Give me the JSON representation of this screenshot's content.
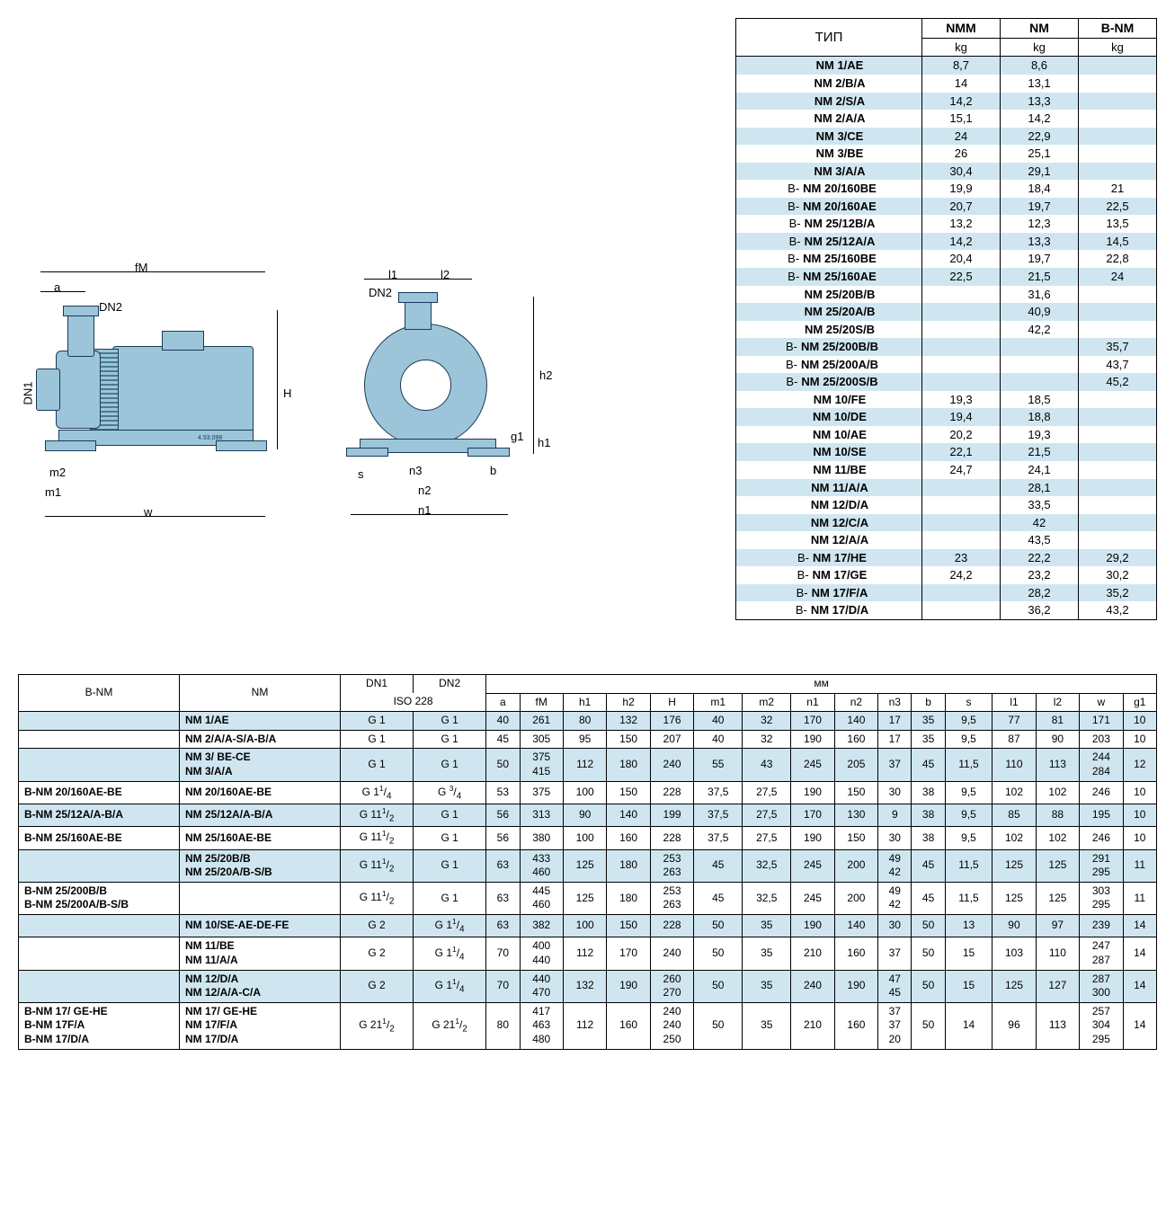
{
  "colors": {
    "stripe": "#cfe6f0",
    "pump_fill": "#9cc5d9",
    "pump_stroke": "#1a3a5a",
    "border": "#000000",
    "background": "#ffffff"
  },
  "diagram_labels": {
    "side": [
      "fM",
      "a",
      "DN2",
      "DN1",
      "H",
      "m2",
      "m1",
      "w"
    ],
    "front": [
      "l1",
      "l2",
      "DN2",
      "h2",
      "g1",
      "h1",
      "s",
      "n3",
      "b",
      "n2",
      "n1"
    ],
    "drawing_ref": "4.93.098"
  },
  "weight_table": {
    "header": {
      "type": "ТИП",
      "col1": "NMM",
      "col2": "NM",
      "col3": "B-NM",
      "unit": "kg"
    },
    "rows": [
      {
        "prefix": "",
        "model": "NM 1/AE",
        "nmm": "8,7",
        "nm": "8,6",
        "bnm": "",
        "stripe": true
      },
      {
        "prefix": "",
        "model": "NM 2/B/A",
        "nmm": "14",
        "nm": "13,1",
        "bnm": "",
        "stripe": false
      },
      {
        "prefix": "",
        "model": "NM 2/S/A",
        "nmm": "14,2",
        "nm": "13,3",
        "bnm": "",
        "stripe": true
      },
      {
        "prefix": "",
        "model": "NM 2/A/A",
        "nmm": "15,1",
        "nm": "14,2",
        "bnm": "",
        "stripe": false
      },
      {
        "prefix": "",
        "model": "NM 3/CE",
        "nmm": "24",
        "nm": "22,9",
        "bnm": "",
        "stripe": true
      },
      {
        "prefix": "",
        "model": "NM 3/BE",
        "nmm": "26",
        "nm": "25,1",
        "bnm": "",
        "stripe": false
      },
      {
        "prefix": "",
        "model": "NM 3/A/A",
        "nmm": "30,4",
        "nm": "29,1",
        "bnm": "",
        "stripe": true
      },
      {
        "prefix": "B-",
        "model": "NM 20/160BE",
        "nmm": "19,9",
        "nm": "18,4",
        "bnm": "21",
        "stripe": false
      },
      {
        "prefix": "B-",
        "model": "NM 20/160AE",
        "nmm": "20,7",
        "nm": "19,7",
        "bnm": "22,5",
        "stripe": true
      },
      {
        "prefix": "B-",
        "model": "NM 25/12B/A",
        "nmm": "13,2",
        "nm": "12,3",
        "bnm": "13,5",
        "stripe": false
      },
      {
        "prefix": "B-",
        "model": "NM 25/12A/A",
        "nmm": "14,2",
        "nm": "13,3",
        "bnm": "14,5",
        "stripe": true
      },
      {
        "prefix": "B-",
        "model": "NM 25/160BE",
        "nmm": "20,4",
        "nm": "19,7",
        "bnm": "22,8",
        "stripe": false
      },
      {
        "prefix": "B-",
        "model": "NM 25/160AE",
        "nmm": "22,5",
        "nm": "21,5",
        "bnm": "24",
        "stripe": true
      },
      {
        "prefix": "",
        "model": "NM 25/20B/B",
        "nmm": "",
        "nm": "31,6",
        "bnm": "",
        "stripe": false
      },
      {
        "prefix": "",
        "model": "NM 25/20A/B",
        "nmm": "",
        "nm": "40,9",
        "bnm": "",
        "stripe": true
      },
      {
        "prefix": "",
        "model": "NM 25/20S/B",
        "nmm": "",
        "nm": "42,2",
        "bnm": "",
        "stripe": false
      },
      {
        "prefix": "B-",
        "model": "NM 25/200B/B",
        "nmm": "",
        "nm": "",
        "bnm": "35,7",
        "stripe": true
      },
      {
        "prefix": "B-",
        "model": "NM 25/200A/B",
        "nmm": "",
        "nm": "",
        "bnm": "43,7",
        "stripe": false
      },
      {
        "prefix": "B-",
        "model": "NM 25/200S/B",
        "nmm": "",
        "nm": "",
        "bnm": "45,2",
        "stripe": true
      },
      {
        "prefix": "",
        "model": "NM 10/FE",
        "nmm": "19,3",
        "nm": "18,5",
        "bnm": "",
        "stripe": false
      },
      {
        "prefix": "",
        "model": "NM 10/DE",
        "nmm": "19,4",
        "nm": "18,8",
        "bnm": "",
        "stripe": true
      },
      {
        "prefix": "",
        "model": "NM 10/AE",
        "nmm": "20,2",
        "nm": "19,3",
        "bnm": "",
        "stripe": false
      },
      {
        "prefix": "",
        "model": "NM 10/SE",
        "nmm": "22,1",
        "nm": "21,5",
        "bnm": "",
        "stripe": true
      },
      {
        "prefix": "",
        "model": "NM 11/BE",
        "nmm": "24,7",
        "nm": "24,1",
        "bnm": "",
        "stripe": false
      },
      {
        "prefix": "",
        "model": "NM 11/A/A",
        "nmm": "",
        "nm": "28,1",
        "bnm": "",
        "stripe": true
      },
      {
        "prefix": "",
        "model": "NM 12/D/A",
        "nmm": "",
        "nm": "33,5",
        "bnm": "",
        "stripe": false
      },
      {
        "prefix": "",
        "model": "NM 12/C/A",
        "nmm": "",
        "nm": "42",
        "bnm": "",
        "stripe": true
      },
      {
        "prefix": "",
        "model": "NM 12/A/A",
        "nmm": "",
        "nm": "43,5",
        "bnm": "",
        "stripe": false
      },
      {
        "prefix": "B-",
        "model": "NM 17/HE",
        "nmm": "23",
        "nm": "22,2",
        "bnm": "29,2",
        "stripe": true
      },
      {
        "prefix": "B-",
        "model": "NM 17/GE",
        "nmm": "24,2",
        "nm": "23,2",
        "bnm": "30,2",
        "stripe": false
      },
      {
        "prefix": "B-",
        "model": "NM 17/F/A",
        "nmm": "",
        "nm": "28,2",
        "bnm": "35,2",
        "stripe": true
      },
      {
        "prefix": "B-",
        "model": "NM 17/D/A",
        "nmm": "",
        "nm": "36,2",
        "bnm": "43,2",
        "stripe": false
      }
    ]
  },
  "dim_table": {
    "header": {
      "bnm": "B-NM",
      "nm": "NM",
      "dn1": "DN1",
      "dn2": "DN2",
      "iso": "ISO 228",
      "mm": "мм",
      "cols": [
        "a",
        "fM",
        "h1",
        "h2",
        "H",
        "m1",
        "m2",
        "n1",
        "n2",
        "n3",
        "b",
        "s",
        "l1",
        "l2",
        "w",
        "g1"
      ]
    },
    "rows": [
      {
        "stripe": true,
        "bnm": "",
        "nm": "NM 1/AE",
        "dn1": "G 1",
        "dn2": "G 1",
        "v": [
          "40",
          "261",
          "80",
          "132",
          "176",
          "40",
          "32",
          "170",
          "140",
          "17",
          "35",
          "9,5",
          "77",
          "81",
          "171",
          "10"
        ]
      },
      {
        "stripe": false,
        "bnm": "",
        "nm": "NM 2/A/A-S/A-B/A",
        "dn1": "G 1",
        "dn2": "G 1",
        "v": [
          "45",
          "305",
          "95",
          "150",
          "207",
          "40",
          "32",
          "190",
          "160",
          "17",
          "35",
          "9,5",
          "87",
          "90",
          "203",
          "10"
        ]
      },
      {
        "stripe": true,
        "bnm": "",
        "nm": "NM 3/ BE-CE\nNM 3/A/A",
        "dn1": "G 1",
        "dn2": "G 1",
        "v": [
          "50",
          "375\n415",
          "112",
          "180",
          "240",
          "55",
          "43",
          "245",
          "205",
          "37",
          "45",
          "11,5",
          "110",
          "113",
          "244\n284",
          "12"
        ]
      },
      {
        "stripe": false,
        "bnm": "B-NM 20/160AE-BE",
        "nm": "NM 20/160AE-BE",
        "dn1": "G 1¹/₄",
        "dn2": "G ³/₄",
        "v": [
          "53",
          "375",
          "100",
          "150",
          "228",
          "37,5",
          "27,5",
          "190",
          "150",
          "30",
          "38",
          "9,5",
          "102",
          "102",
          "246",
          "10"
        ]
      },
      {
        "stripe": true,
        "bnm": "B-NM 25/12A/A-B/A",
        "nm": "NM 25/12A/A-B/A",
        "dn1": "G 1¹/₂",
        "dn2": "G 1",
        "v": [
          "56",
          "313",
          "90",
          "140",
          "199",
          "37,5",
          "27,5",
          "170",
          "130",
          "9",
          "38",
          "9,5",
          "85",
          "88",
          "195",
          "10"
        ]
      },
      {
        "stripe": false,
        "bnm": "B-NM 25/160AE-BE",
        "nm": "NM 25/160AE-BE",
        "dn1": "G 1¹/₂",
        "dn2": "G 1",
        "v": [
          "56",
          "380",
          "100",
          "160",
          "228",
          "37,5",
          "27,5",
          "190",
          "150",
          "30",
          "38",
          "9,5",
          "102",
          "102",
          "246",
          "10"
        ]
      },
      {
        "stripe": true,
        "bnm": "",
        "nm": "NM 25/20B/B\nNM 25/20A/B-S/B",
        "dn1": "G 1¹/₂",
        "dn2": "G 1",
        "v": [
          "63",
          "433\n460",
          "125",
          "180",
          "253\n263",
          "45",
          "32,5",
          "245",
          "200",
          "49\n42",
          "45",
          "11,5",
          "125",
          "125",
          "291\n295",
          "11"
        ]
      },
      {
        "stripe": false,
        "bnm": "B-NM 25/200B/B\nB-NM 25/200A/B-S/B",
        "nm": "",
        "dn1": "G 1¹/₂",
        "dn2": "G 1",
        "v": [
          "63",
          "445\n460",
          "125",
          "180",
          "253\n263",
          "45",
          "32,5",
          "245",
          "200",
          "49\n42",
          "45",
          "11,5",
          "125",
          "125",
          "303\n295",
          "11"
        ]
      },
      {
        "stripe": true,
        "bnm": "",
        "nm": "NM 10/SE-AE-DE-FE",
        "dn1": "G 2",
        "dn2": "G 1¹/₄",
        "v": [
          "63",
          "382",
          "100",
          "150",
          "228",
          "50",
          "35",
          "190",
          "140",
          "30",
          "50",
          "13",
          "90",
          "97",
          "239",
          "14"
        ]
      },
      {
        "stripe": false,
        "bnm": "",
        "nm": "NM 11/BE\nNM 11/A/A",
        "dn1": "G 2",
        "dn2": "G 1¹/₄",
        "v": [
          "70",
          "400\n440",
          "112",
          "170",
          "240",
          "50",
          "35",
          "210",
          "160",
          "37",
          "50",
          "15",
          "103",
          "110",
          "247\n287",
          "14"
        ]
      },
      {
        "stripe": true,
        "bnm": "",
        "nm": "NM 12/D/A\nNM 12/A/A-C/A",
        "dn1": "G 2",
        "dn2": "G 1¹/₄",
        "v": [
          "70",
          "440\n470",
          "132",
          "190",
          "260\n270",
          "50",
          "35",
          "240",
          "190",
          "47\n45",
          "50",
          "15",
          "125",
          "127",
          "287\n300",
          "14"
        ]
      },
      {
        "stripe": false,
        "bnm": "B-NM 17/ GE-HE\nB-NM 17F/A\nB-NM 17/D/A",
        "nm": "NM 17/ GE-HE\nNM 17/F/A\nNM 17/D/A",
        "dn1": "G 2¹/₂",
        "dn2": "G 2¹/₂",
        "v": [
          "80",
          "417\n463\n480",
          "112",
          "160",
          "240\n240\n250",
          "50",
          "35",
          "210",
          "160",
          "37\n37\n20",
          "50",
          "14",
          "96",
          "113",
          "257\n304\n295",
          "14"
        ]
      }
    ]
  }
}
